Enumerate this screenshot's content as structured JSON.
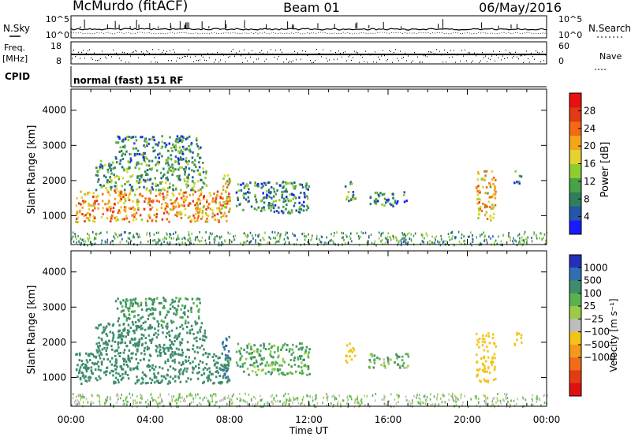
{
  "header": {
    "station": "McMurdo (fitACF)",
    "beam": "Beam 01",
    "date": "06/May/2016"
  },
  "top_panels": {
    "nsky_label": "N.Sky",
    "nsky_ticks": [
      "10^5",
      "10^0"
    ],
    "nsearch_label": "N.Search",
    "nsearch_ticks": [
      "10^5",
      "10^0"
    ],
    "freq_label_1": "Freq.",
    "freq_label_2": "[MHz]",
    "freq_ticks": [
      "18",
      "8"
    ],
    "nave_label": "Nave",
    "nave_ticks": [
      "60",
      "0"
    ],
    "cpid_label": "CPID",
    "cpid_text": "normal (fast) 151 RF"
  },
  "x_axis": {
    "label": "Time UT",
    "ticks": [
      "00:00",
      "04:00",
      "08:00",
      "12:00",
      "16:00",
      "20:00",
      "00:00"
    ]
  },
  "chart_data": [
    {
      "type": "heatmap",
      "name": "power",
      "ylabel": "Slant Range [km]",
      "yticks": [
        1000,
        2000,
        3000,
        4000
      ],
      "ylim": [
        180,
        4600
      ],
      "xlim_hours": [
        0,
        24
      ],
      "colorbar": {
        "label": "Power [dB]",
        "tick_labels": [
          "4",
          "8",
          "12",
          "16",
          "20",
          "24",
          "28"
        ],
        "tick_values": [
          4,
          8,
          12,
          16,
          20,
          24,
          28
        ],
        "range": [
          0,
          32
        ],
        "colors": [
          "#1a1aff",
          "#2456a8",
          "#2f7f5f",
          "#49a14a",
          "#8fcd2f",
          "#e6d22f",
          "#f4a51c",
          "#f26a16",
          "#e23a12",
          "#e81010"
        ]
      },
      "regions": [
        {
          "t0": 0.2,
          "t1": 8.0,
          "r0": 850,
          "r1": 1750,
          "v": 22
        },
        {
          "t0": 1.2,
          "t1": 6.8,
          "r0": 1750,
          "r1": 2600,
          "v": 11
        },
        {
          "t0": 2.2,
          "t1": 6.5,
          "r0": 2600,
          "r1": 3300,
          "v": 8
        },
        {
          "t0": 7.6,
          "t1": 8.0,
          "r0": 1000,
          "r1": 2200,
          "v": 18
        },
        {
          "t0": 8.3,
          "t1": 12.0,
          "r0": 1100,
          "r1": 2000,
          "v": 9
        },
        {
          "t0": 13.8,
          "t1": 14.3,
          "r0": 1400,
          "r1": 2000,
          "v": 10
        },
        {
          "t0": 15.0,
          "t1": 17.0,
          "r0": 1300,
          "r1": 1700,
          "v": 8
        },
        {
          "t0": 20.4,
          "t1": 21.4,
          "r0": 900,
          "r1": 2300,
          "v": 19
        },
        {
          "t0": 22.3,
          "t1": 22.7,
          "r0": 1900,
          "r1": 2300,
          "v": 8
        }
      ]
    },
    {
      "type": "heatmap",
      "name": "velocity",
      "ylabel": "Slant Range [km]",
      "yticks": [
        1000,
        2000,
        3000,
        4000
      ],
      "ylim": [
        180,
        4600
      ],
      "xlim_hours": [
        0,
        24
      ],
      "colorbar": {
        "label": "Velocity [m s⁻¹]",
        "tick_labels": [
          "1000",
          "500",
          "100",
          "25",
          "−25",
          "−100",
          "−500",
          "−1000"
        ],
        "tick_values": [
          1000,
          500,
          100,
          25,
          -25,
          -100,
          -500,
          -1000
        ],
        "colors": [
          "#2230b8",
          "#2f6fb0",
          "#3e8d6a",
          "#57b24f",
          "#9ccb4a",
          "#bdbdbd",
          "#f2c41a",
          "#f39a1a",
          "#f06d17",
          "#e63b12",
          "#e01010"
        ]
      },
      "regions": [
        {
          "t0": 0.2,
          "t1": 8.0,
          "r0": 850,
          "r1": 1750,
          "v": 300
        },
        {
          "t0": 1.2,
          "t1": 6.8,
          "r0": 1750,
          "r1": 2600,
          "v": 250
        },
        {
          "t0": 2.2,
          "t1": 6.5,
          "r0": 2600,
          "r1": 3300,
          "v": 120
        },
        {
          "t0": 7.6,
          "t1": 8.0,
          "r0": 1000,
          "r1": 2200,
          "v": 500
        },
        {
          "t0": 8.3,
          "t1": 12.0,
          "r0": 1100,
          "r1": 2000,
          "v": 80
        },
        {
          "t0": 13.8,
          "t1": 14.3,
          "r0": 1400,
          "r1": 2000,
          "v": -200
        },
        {
          "t0": 15.0,
          "t1": 17.0,
          "r0": 1300,
          "r1": 1700,
          "v": 60
        },
        {
          "t0": 20.4,
          "t1": 21.4,
          "r0": 900,
          "r1": 2300,
          "v": -300
        },
        {
          "t0": 22.3,
          "t1": 22.7,
          "r0": 1900,
          "r1": 2300,
          "v": -200
        }
      ]
    }
  ]
}
